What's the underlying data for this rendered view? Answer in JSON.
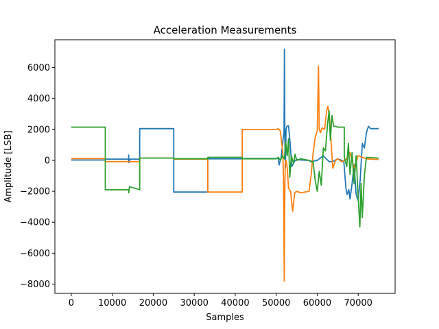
{
  "chart_data": {
    "type": "line",
    "title": "Acceleration Measurements",
    "xlabel": "Samples",
    "ylabel": "Amplitude [LSB]",
    "xlim": [
      -4000,
      79000
    ],
    "ylim": [
      -8600,
      7800
    ],
    "x_ticks": [
      0,
      10000,
      20000,
      30000,
      40000,
      50000,
      60000,
      70000
    ],
    "y_ticks": [
      -8000,
      -6000,
      -4000,
      -2000,
      0,
      2000,
      4000,
      6000,
      8000
    ],
    "x_tick_labels": [
      "0",
      "10000",
      "20000",
      "30000",
      "40000",
      "50000",
      "60000",
      "70000"
    ],
    "y_tick_labels": [
      "−8000",
      "−6000",
      "−4000",
      "−2000",
      "0",
      "2000",
      "4000",
      "6000"
    ],
    "grid": false,
    "legend": "none",
    "colors": [
      "#1f77b4",
      "#ff7f0e",
      "#2ca02c"
    ],
    "series": [
      {
        "x": [
          0,
          8300,
          8300,
          14000,
          14000,
          14000,
          14300,
          16700,
          16700,
          25000,
          25000,
          33300,
          33300,
          41700,
          41700,
          50000,
          50500,
          50700,
          51200,
          51600,
          51900,
          52000,
          52100,
          52250,
          52400,
          52600,
          53000,
          53400,
          53800,
          54200,
          54600,
          55000,
          56000,
          58000,
          58500,
          59000,
          60000,
          61500,
          62000,
          63000,
          64000,
          65000,
          66000,
          66500,
          67000,
          67300,
          67700,
          68000,
          68500,
          69000,
          69500,
          70000,
          70500,
          71000,
          71500,
          72000,
          72500,
          73000,
          75000
        ],
        "y": [
          20,
          20,
          80,
          80,
          350,
          -150,
          80,
          80,
          2050,
          2050,
          -2050,
          -2050,
          100,
          100,
          120,
          120,
          150,
          -300,
          200,
          1200,
          1900,
          7200,
          1500,
          -500,
          2000,
          2200,
          2250,
          1100,
          -400,
          -200,
          0,
          50,
          20,
          0,
          -100,
          -50,
          0,
          300,
          150,
          -100,
          -50,
          100,
          0,
          -100,
          -1800,
          -2200,
          -1900,
          -2500,
          -1500,
          -300,
          -2200,
          -2600,
          -1200,
          1100,
          800,
          1800,
          2200,
          2050,
          2050
        ]
      },
      {
        "x": [
          0,
          8300,
          8300,
          16700,
          16700,
          25000,
          25000,
          33300,
          33300,
          41700,
          41700,
          50000,
          50500,
          51000,
          51300,
          51600,
          51800,
          51950,
          52050,
          52200,
          52400,
          52700,
          53000,
          53500,
          54000,
          54500,
          55000,
          56000,
          57000,
          58000,
          58500,
          59000,
          59500,
          60000,
          60300,
          60500,
          60800,
          61200,
          61800,
          62300,
          62600,
          63000,
          63300,
          63800,
          64500,
          65000,
          66000,
          67000,
          68000,
          69000,
          70000,
          71000,
          72000,
          75000
        ],
        "y": [
          120,
          120,
          -80,
          -80,
          150,
          150,
          80,
          80,
          -2050,
          -2050,
          2000,
          2000,
          2050,
          1900,
          1200,
          500,
          -1500,
          -7800,
          -3500,
          -200,
          0,
          -500,
          -1800,
          -2000,
          -3300,
          -2100,
          -2000,
          -2100,
          -2050,
          -2000,
          -1000,
          500,
          1500,
          1900,
          6100,
          2000,
          1800,
          2100,
          2000,
          3200,
          3500,
          2800,
          1500,
          -500,
          0,
          100,
          -100,
          50,
          500,
          -500,
          300,
          200,
          100,
          50
        ]
      },
      {
        "x": [
          0,
          8300,
          8300,
          14000,
          14000,
          14200,
          16700,
          16700,
          25000,
          25000,
          33300,
          33300,
          41700,
          41700,
          50000,
          50500,
          51000,
          51500,
          52000,
          52300,
          52700,
          53000,
          53300,
          53700,
          54200,
          54600,
          55000,
          56000,
          57000,
          58000,
          59000,
          59500,
          60000,
          60500,
          61000,
          61500,
          62000,
          62500,
          62900,
          63200,
          63600,
          64000,
          64500,
          65000,
          66000,
          66600,
          66600,
          67200,
          67600,
          68000,
          68500,
          69000,
          69500,
          70000,
          70400,
          70700,
          71000,
          71500,
          72000,
          75000
        ],
        "y": [
          2150,
          2150,
          -1900,
          -1900,
          -2100,
          -1700,
          -1900,
          150,
          150,
          100,
          100,
          200,
          200,
          100,
          100,
          200,
          0,
          300,
          100,
          1200,
          300,
          1400,
          -1100,
          300,
          -200,
          400,
          0,
          100,
          50,
          0,
          -100,
          -1300,
          -2000,
          -700,
          -1600,
          800,
          600,
          2300,
          3200,
          1300,
          2900,
          2200,
          2200,
          2150,
          2150,
          2150,
          200,
          -400,
          1100,
          -900,
          500,
          -1500,
          300,
          -2400,
          -4300,
          -1500,
          -3700,
          -1000,
          200,
          150
        ]
      }
    ]
  }
}
